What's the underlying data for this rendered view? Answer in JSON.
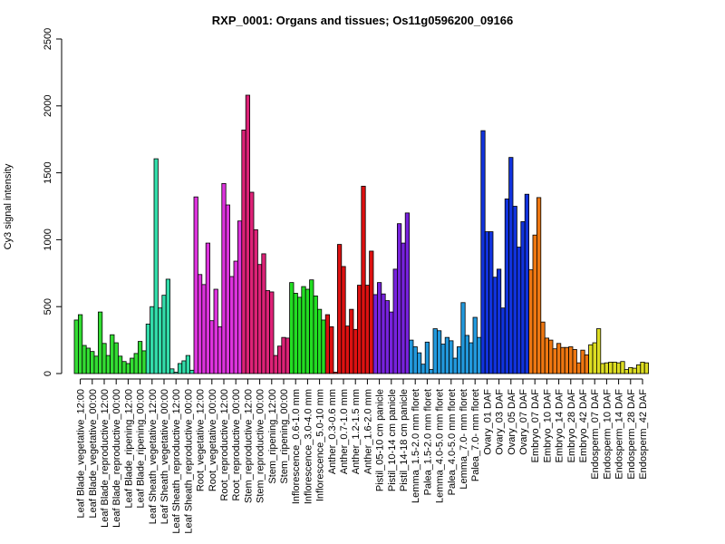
{
  "chart_data": {
    "type": "bar",
    "title": "RXP_0001: Organs and tissues; Os11g0596200_09166",
    "xlabel": "",
    "ylabel": "Cy3 signal intensity",
    "ylim": [
      0,
      2500
    ],
    "yticks": [
      0,
      500,
      1000,
      1500,
      2000,
      2500
    ],
    "grid": false,
    "legend": "none",
    "categories": [
      "Leaf Blade_vegetative_12:00",
      "Leaf Blade_vegetative_00:00",
      "Leaf Blade_reproductive_12:00",
      "Leaf Blade_reproductive_00:00",
      "Leaf Blade_ripening_12:00",
      "Leaf Blade_ripening_00:00",
      "Leaf Sheath_vegetative_12:00",
      "Leaf Sheath_vegetative_00:00",
      "Leaf Sheath_reproductive_12:00",
      "Leaf Sheath_reproductive_00:00",
      "Root_vegetative_12:00",
      "Root_vegetative_00:00",
      "Root_reproductive_12:00",
      "Root_reproductive_00:00",
      "Stem_reproductive_12:00",
      "Stem_reproductive_00:00",
      "Stem_ripening_12:00",
      "Stem_ripening_00:00",
      "Inflorescence_0.6-1.0 mm",
      "Inflorescence_3.0-4.0 mm",
      "Inflorescence_5.0-10 mm",
      "Anther_0.3-0.6 mm",
      "Anther_0.7-1.0 mm",
      "Anther_1.2-1.5 mm",
      "Anther_1.6-2.0 mm",
      "Pistil_05-10 cm panicle",
      "Pistil_10-14 cm panicle",
      "Pistil_14-18 cm panicle",
      "Lemma_1.5-2.0 mm floret",
      "Palea_1.5-2.0 mm floret",
      "Lemma_4.0-5.0 mm floret",
      "Palea_4.0-5.0 mm floret",
      "Lemma_7.0- mm floret",
      "Palea_7.0- mm floret",
      "Ovary_01 DAF",
      "Ovary_03 DAF",
      "Ovary_05 DAF",
      "Ovary_07 DAF",
      "Embryo_07 DAF",
      "Embryo_10 DAF",
      "Embryo_14 DAF",
      "Embryo_28 DAF",
      "Embryo_42 DAF",
      "Endosperm_07 DAF",
      "Endosperm_10 DAF",
      "Endosperm_14 DAF",
      "Endosperm_28 DAF",
      "Endosperm_42 DAF"
    ],
    "colors": [
      "#33dd33",
      "#33dd33",
      "#33dd33",
      "#33dd33",
      "#33dd33",
      "#33dd33",
      "#33ddaa",
      "#33ddaa",
      "#33ddaa",
      "#33ddaa",
      "#dd33dd",
      "#dd33dd",
      "#dd33dd",
      "#dd33dd",
      "#dd2277",
      "#dd2277",
      "#dd2277",
      "#dd2277",
      "#22dd22",
      "#22dd22",
      "#22dd22",
      "#dd1111",
      "#dd1111",
      "#dd1111",
      "#dd1111",
      "#7722dd",
      "#7722dd",
      "#7722dd",
      "#2299dd",
      "#2299dd",
      "#2299dd",
      "#2299dd",
      "#2299dd",
      "#2299dd",
      "#1133dd",
      "#1133dd",
      "#1133dd",
      "#1133dd",
      "#ee7711",
      "#ee7711",
      "#ee7711",
      "#ee7711",
      "#ee7711",
      "#dddd22",
      "#dddd22",
      "#dddd22",
      "#dddd22",
      "#dddd22"
    ],
    "values": [
      [
        400,
        440,
        210
      ],
      [
        190,
        165,
        130
      ],
      [
        460,
        225,
        135
      ],
      [
        290,
        230,
        130
      ],
      [
        90,
        75,
        115
      ],
      [
        150,
        240,
        170
      ],
      [
        370,
        500,
        1605
      ],
      [
        490,
        585,
        705
      ],
      [
        35,
        10,
        75
      ],
      [
        95,
        135,
        25
      ],
      [
        1320,
        740,
        665
      ],
      [
        975,
        395,
        630
      ],
      [
        350,
        1420,
        1260
      ],
      [
        725,
        840,
        1140
      ],
      [
        1820,
        2080,
        1355
      ],
      [
        1075,
        815,
        895
      ],
      [
        620,
        610,
        135
      ],
      [
        205,
        270,
        265
      ],
      [
        680,
        600,
        570
      ],
      [
        650,
        630,
        700
      ],
      [
        580,
        480,
        400
      ],
      [
        440,
        350,
        10
      ],
      [
        965,
        800,
        355
      ],
      [
        480,
        330,
        660
      ],
      [
        1400,
        660,
        915
      ],
      [
        590,
        680,
        595
      ],
      [
        545,
        460,
        780
      ],
      [
        1120,
        975,
        1200
      ],
      [
        250,
        200,
        155
      ],
      [
        70,
        235,
        30
      ],
      [
        335,
        320,
        220
      ],
      [
        270,
        245,
        115
      ],
      [
        200,
        530,
        285
      ],
      [
        230,
        420,
        270
      ],
      [
        1815,
        1060,
        1060
      ],
      [
        720,
        780,
        490
      ],
      [
        1305,
        1615,
        1250
      ],
      [
        945,
        1135,
        1340
      ],
      [
        775,
        1035,
        1315
      ],
      [
        385,
        265,
        250
      ],
      [
        185,
        225,
        195
      ],
      [
        195,
        200,
        180
      ],
      [
        80,
        175,
        140
      ],
      [
        215,
        230,
        335
      ],
      [
        75,
        80,
        85
      ],
      [
        85,
        80,
        90
      ],
      [
        30,
        45,
        40
      ],
      [
        65,
        85,
        80
      ]
    ]
  }
}
